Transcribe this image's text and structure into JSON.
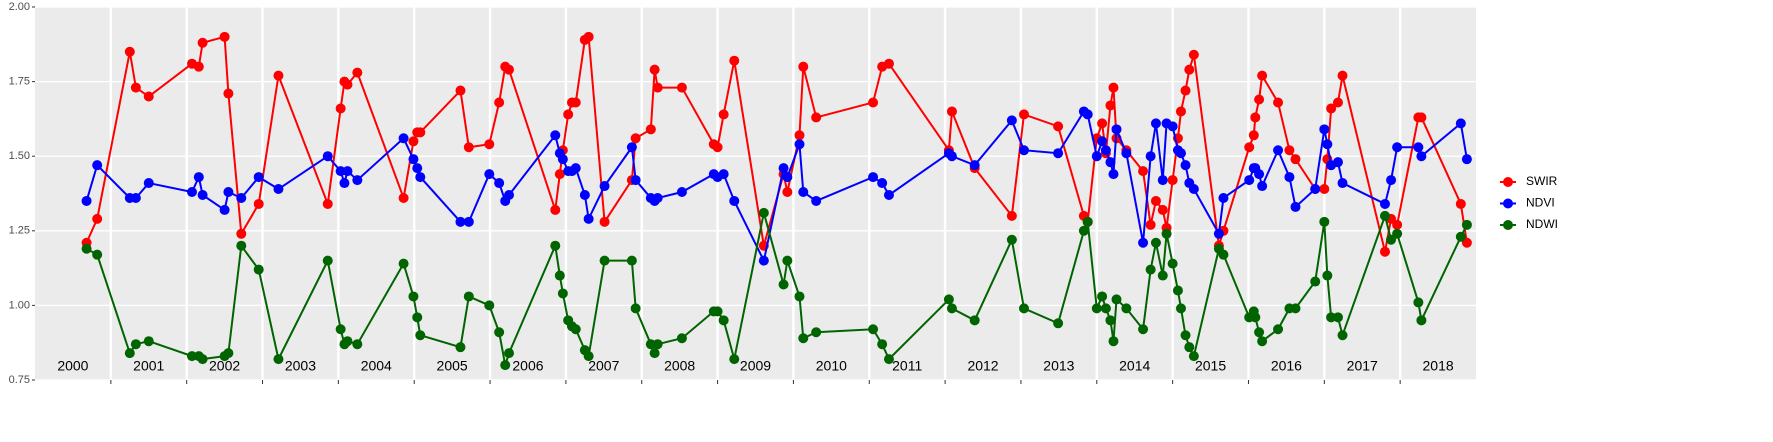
{
  "chart_data": {
    "type": "line",
    "x": [
      2000.68,
      2000.82,
      2001.25,
      2001.33,
      2001.5,
      2002.07,
      2002.16,
      2002.21,
      2002.5,
      2002.55,
      2002.72,
      2002.95,
      2003.21,
      2003.86,
      2004.03,
      2004.08,
      2004.12,
      2004.25,
      2004.86,
      2004.99,
      2005.04,
      2005.08,
      2005.61,
      2005.72,
      2005.99,
      2006.12,
      2006.2,
      2006.25,
      2006.86,
      2006.92,
      2006.96,
      2007.03,
      2007.08,
      2007.13,
      2007.25,
      2007.3,
      2007.51,
      2007.87,
      2007.92,
      2008.12,
      2008.17,
      2008.21,
      2008.53,
      2008.95,
      2009.0,
      2009.08,
      2009.22,
      2009.61,
      2009.87,
      2009.92,
      2010.08,
      2010.13,
      2010.3,
      2011.05,
      2011.17,
      2011.26,
      2012.05,
      2012.09,
      2012.39,
      2012.88,
      2013.04,
      2013.49,
      2013.83,
      2013.88,
      2014.0,
      2014.07,
      2014.12,
      2014.18,
      2014.22,
      2014.26,
      2014.39,
      2014.61,
      2014.71,
      2014.78,
      2014.87,
      2014.92,
      2015.0,
      2015.07,
      2015.11,
      2015.17,
      2015.22,
      2015.28,
      2015.61,
      2015.67,
      2016.01,
      2016.07,
      2016.09,
      2016.14,
      2016.18,
      2016.39,
      2016.54,
      2016.62,
      2016.88,
      2017.0,
      2017.04,
      2017.09,
      2017.18,
      2017.24,
      2017.8,
      2017.88,
      2017.96,
      2018.24,
      2018.28,
      2018.8,
      2018.88
    ],
    "series": [
      {
        "name": "SWIR",
        "color": "#ff0000",
        "values": [
          1.21,
          1.29,
          1.85,
          1.73,
          1.7,
          1.81,
          1.8,
          1.88,
          1.9,
          1.71,
          1.24,
          1.34,
          1.77,
          1.34,
          1.66,
          1.75,
          1.74,
          1.78,
          1.36,
          1.55,
          1.58,
          1.58,
          1.72,
          1.53,
          1.54,
          1.68,
          1.8,
          1.79,
          1.32,
          1.44,
          1.52,
          1.64,
          1.68,
          1.68,
          1.89,
          1.9,
          1.28,
          1.42,
          1.56,
          1.59,
          1.79,
          1.73,
          1.73,
          1.54,
          1.53,
          1.64,
          1.82,
          1.2,
          1.44,
          1.38,
          1.57,
          1.8,
          1.63,
          1.68,
          1.8,
          1.81,
          1.52,
          1.65,
          1.46,
          1.3,
          1.64,
          1.6,
          1.3,
          1.28,
          1.56,
          1.61,
          1.51,
          1.67,
          1.73,
          1.56,
          1.52,
          1.45,
          1.27,
          1.35,
          1.32,
          1.26,
          1.42,
          1.56,
          1.65,
          1.72,
          1.79,
          1.84,
          1.2,
          1.25,
          1.53,
          1.57,
          1.63,
          1.69,
          1.77,
          1.68,
          1.52,
          1.49,
          1.39,
          1.39,
          1.49,
          1.66,
          1.68,
          1.77,
          1.18,
          1.29,
          1.27,
          1.63,
          1.63,
          1.34,
          1.21
        ]
      },
      {
        "name": "NDVI",
        "color": "#0000ff",
        "values": [
          1.35,
          1.47,
          1.36,
          1.36,
          1.41,
          1.38,
          1.43,
          1.37,
          1.32,
          1.38,
          1.36,
          1.43,
          1.39,
          1.5,
          1.45,
          1.41,
          1.45,
          1.42,
          1.56,
          1.49,
          1.46,
          1.43,
          1.28,
          1.28,
          1.44,
          1.41,
          1.35,
          1.37,
          1.57,
          1.51,
          1.49,
          1.45,
          1.45,
          1.46,
          1.37,
          1.29,
          1.4,
          1.53,
          1.42,
          1.36,
          1.35,
          1.36,
          1.38,
          1.44,
          1.43,
          1.44,
          1.35,
          1.15,
          1.46,
          1.43,
          1.54,
          1.38,
          1.35,
          1.43,
          1.41,
          1.37,
          1.51,
          1.5,
          1.47,
          1.62,
          1.52,
          1.51,
          1.65,
          1.64,
          1.5,
          1.55,
          1.52,
          1.48,
          1.44,
          1.59,
          1.51,
          1.21,
          1.5,
          1.61,
          1.42,
          1.61,
          1.6,
          1.52,
          1.51,
          1.47,
          1.41,
          1.39,
          1.24,
          1.36,
          1.42,
          1.46,
          1.46,
          1.44,
          1.4,
          1.52,
          1.43,
          1.33,
          1.39,
          1.59,
          1.54,
          1.47,
          1.48,
          1.41,
          1.34,
          1.42,
          1.53,
          1.53,
          1.5,
          1.61,
          1.49
        ]
      },
      {
        "name": "NDWI",
        "color": "#006400",
        "values": [
          1.19,
          1.17,
          0.84,
          0.87,
          0.88,
          0.83,
          0.83,
          0.82,
          0.83,
          0.84,
          1.2,
          1.12,
          0.82,
          1.15,
          0.92,
          0.87,
          0.88,
          0.87,
          1.14,
          1.03,
          0.96,
          0.9,
          0.86,
          1.03,
          1.0,
          0.91,
          0.8,
          0.84,
          1.2,
          1.1,
          1.04,
          0.95,
          0.93,
          0.92,
          0.85,
          0.83,
          1.15,
          1.15,
          0.99,
          0.87,
          0.84,
          0.87,
          0.89,
          0.98,
          0.98,
          0.95,
          0.82,
          1.31,
          1.07,
          1.15,
          1.03,
          0.89,
          0.91,
          0.92,
          0.87,
          0.82,
          1.02,
          0.99,
          0.95,
          1.22,
          0.99,
          0.94,
          1.25,
          1.28,
          0.99,
          1.03,
          0.99,
          0.95,
          0.88,
          1.02,
          0.99,
          0.92,
          1.12,
          1.21,
          1.1,
          1.24,
          1.14,
          1.05,
          0.99,
          0.9,
          0.86,
          0.83,
          1.19,
          1.17,
          0.96,
          0.98,
          0.96,
          0.91,
          0.88,
          0.92,
          0.99,
          0.99,
          1.08,
          1.28,
          1.1,
          0.96,
          0.96,
          0.9,
          1.3,
          1.22,
          1.24,
          1.01,
          0.95,
          1.23,
          1.27
        ]
      }
    ],
    "xlim": [
      2000,
      2019
    ],
    "xticks": [
      2001,
      2002,
      2003,
      2004,
      2005,
      2006,
      2007,
      2008,
      2009,
      2010,
      2011,
      2012,
      2013,
      2014,
      2015,
      2016,
      2017,
      2018
    ],
    "year_labels": [
      "2000",
      "2001",
      "2002",
      "2003",
      "2004",
      "2005",
      "2006",
      "2007",
      "2008",
      "2009",
      "2010",
      "2011",
      "2012",
      "2013",
      "2014",
      "2015",
      "2016",
      "2017",
      "2018"
    ],
    "ylim": [
      0.75,
      2.0
    ],
    "yticks": [
      {
        "value": 0.75,
        "label": "0.75"
      },
      {
        "value": 1.0,
        "label": "1.00"
      },
      {
        "value": 1.25,
        "label": "1.25"
      },
      {
        "value": 1.5,
        "label": "1.50"
      },
      {
        "value": 1.75,
        "label": "1.75"
      },
      {
        "value": 2.0,
        "label": "2.00"
      }
    ],
    "grid": true
  }
}
